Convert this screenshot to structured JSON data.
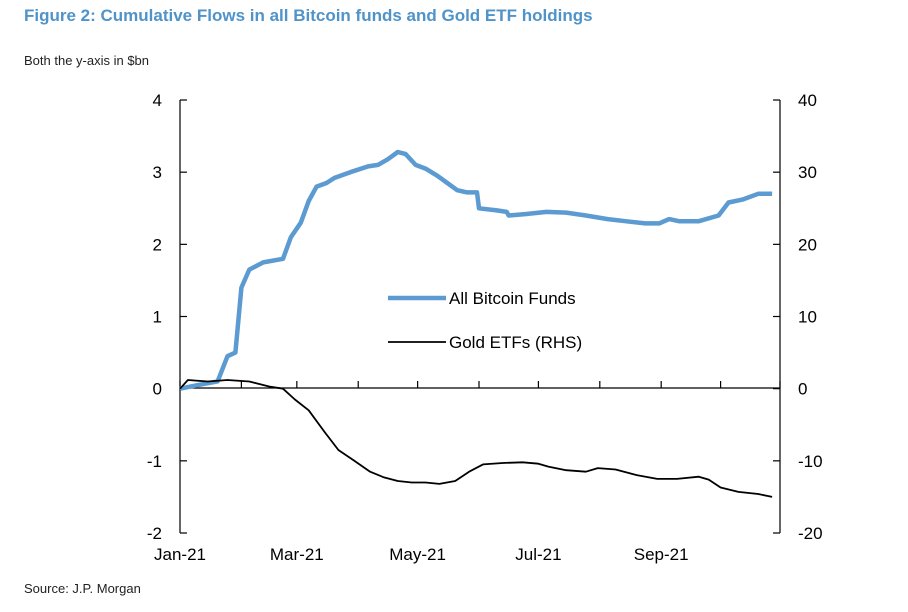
{
  "header": {
    "title": "Figure 2: Cumulative Flows in all Bitcoin funds and Gold ETF holdings",
    "subtitle": "Both the y-axis in $bn"
  },
  "footer": {
    "source": "Source: J.P. Morgan"
  },
  "colors": {
    "title": "#4f93c9",
    "bitcoin": "#5b9bd1",
    "gold": "#000000",
    "axis": "#000000"
  },
  "chart_data": {
    "type": "line",
    "title": "Figure 2: Cumulative Flows in all Bitcoin funds and Gold ETF holdings",
    "x_ticks": [
      "Jan-21",
      "Mar-21",
      "May-21",
      "Jul-21",
      "Sep-21"
    ],
    "x_range": [
      "2021-01-01",
      "2021-10-31"
    ],
    "y_left": {
      "ticks": [
        "4",
        "3",
        "2",
        "1",
        "0",
        "-1",
        "-2"
      ],
      "range": [
        -2,
        4
      ]
    },
    "y_right": {
      "ticks": [
        "40",
        "30",
        "20",
        "10",
        "0",
        "-10",
        "-20"
      ],
      "range": [
        -20,
        40
      ]
    },
    "legend": {
      "position": "center",
      "entries": [
        "All Bitcoin Funds",
        "Gold ETFs (RHS)"
      ]
    },
    "grid": false,
    "series": [
      {
        "name": "All Bitcoin Funds",
        "axis": "left",
        "points": [
          [
            "2021-01-01",
            0.0
          ],
          [
            "2021-01-10",
            0.05
          ],
          [
            "2021-01-20",
            0.1
          ],
          [
            "2021-01-25",
            0.45
          ],
          [
            "2021-01-29",
            0.5
          ],
          [
            "2021-02-01",
            1.4
          ],
          [
            "2021-02-05",
            1.65
          ],
          [
            "2021-02-12",
            1.75
          ],
          [
            "2021-02-22",
            1.8
          ],
          [
            "2021-02-26",
            2.1
          ],
          [
            "2021-03-03",
            2.3
          ],
          [
            "2021-03-07",
            2.6
          ],
          [
            "2021-03-11",
            2.8
          ],
          [
            "2021-03-16",
            2.85
          ],
          [
            "2021-03-20",
            2.92
          ],
          [
            "2021-03-28",
            3.0
          ],
          [
            "2021-04-06",
            3.08
          ],
          [
            "2021-04-11",
            3.1
          ],
          [
            "2021-04-16",
            3.18
          ],
          [
            "2021-04-21",
            3.28
          ],
          [
            "2021-04-25",
            3.25
          ],
          [
            "2021-04-30",
            3.1
          ],
          [
            "2021-05-05",
            3.05
          ],
          [
            "2021-05-11",
            2.95
          ],
          [
            "2021-05-16",
            2.85
          ],
          [
            "2021-05-21",
            2.75
          ],
          [
            "2021-05-26",
            2.72
          ],
          [
            "2021-05-31",
            2.72
          ],
          [
            "2021-06-01",
            2.5
          ],
          [
            "2021-06-10",
            2.47
          ],
          [
            "2021-06-15",
            2.45
          ],
          [
            "2021-06-16",
            2.4
          ],
          [
            "2021-06-25",
            2.42
          ],
          [
            "2021-07-05",
            2.45
          ],
          [
            "2021-07-15",
            2.44
          ],
          [
            "2021-07-25",
            2.4
          ],
          [
            "2021-08-05",
            2.35
          ],
          [
            "2021-08-14",
            2.32
          ],
          [
            "2021-08-24",
            2.29
          ],
          [
            "2021-08-31",
            2.29
          ],
          [
            "2021-09-05",
            2.35
          ],
          [
            "2021-09-10",
            2.32
          ],
          [
            "2021-09-20",
            2.32
          ],
          [
            "2021-09-30",
            2.4
          ],
          [
            "2021-10-05",
            2.58
          ],
          [
            "2021-10-12",
            2.62
          ],
          [
            "2021-10-20",
            2.7
          ],
          [
            "2021-10-27",
            2.7
          ]
        ]
      },
      {
        "name": "Gold ETFs (RHS)",
        "axis": "right",
        "points": [
          [
            "2021-01-01",
            0.0
          ],
          [
            "2021-01-05",
            1.2
          ],
          [
            "2021-01-15",
            1.0
          ],
          [
            "2021-01-25",
            1.2
          ],
          [
            "2021-02-05",
            1.0
          ],
          [
            "2021-02-15",
            0.3
          ],
          [
            "2021-02-22",
            0.0
          ],
          [
            "2021-02-28",
            -1.5
          ],
          [
            "2021-03-07",
            -3.0
          ],
          [
            "2021-03-15",
            -6.0
          ],
          [
            "2021-03-22",
            -8.5
          ],
          [
            "2021-03-30",
            -10.0
          ],
          [
            "2021-04-07",
            -11.5
          ],
          [
            "2021-04-14",
            -12.3
          ],
          [
            "2021-04-21",
            -12.8
          ],
          [
            "2021-04-28",
            -13.0
          ],
          [
            "2021-05-05",
            -13.0
          ],
          [
            "2021-05-12",
            -13.2
          ],
          [
            "2021-05-20",
            -12.8
          ],
          [
            "2021-05-27",
            -11.5
          ],
          [
            "2021-06-03",
            -10.5
          ],
          [
            "2021-06-13",
            -10.3
          ],
          [
            "2021-06-23",
            -10.2
          ],
          [
            "2021-07-01",
            -10.4
          ],
          [
            "2021-07-06",
            -10.8
          ],
          [
            "2021-07-15",
            -11.3
          ],
          [
            "2021-07-25",
            -11.5
          ],
          [
            "2021-07-31",
            -11.0
          ],
          [
            "2021-08-09",
            -11.2
          ],
          [
            "2021-08-20",
            -12.0
          ],
          [
            "2021-08-30",
            -12.5
          ],
          [
            "2021-09-09",
            -12.5
          ],
          [
            "2021-09-20",
            -12.2
          ],
          [
            "2021-09-25",
            -12.6
          ],
          [
            "2021-10-01",
            -13.7
          ],
          [
            "2021-10-10",
            -14.3
          ],
          [
            "2021-10-20",
            -14.6
          ],
          [
            "2021-10-27",
            -15.0
          ]
        ]
      }
    ]
  }
}
